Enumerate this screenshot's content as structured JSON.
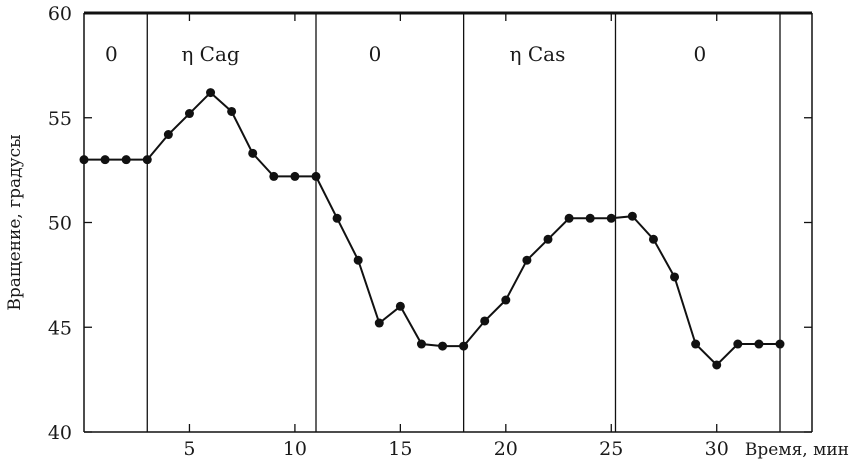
{
  "chart_data": {
    "type": "line",
    "title": "",
    "xlabel": "Время, мин",
    "ylabel": "Вращение, градусы",
    "xlim": [
      0,
      33
    ],
    "ylim": [
      40,
      60
    ],
    "xticks": [
      5,
      10,
      15,
      20,
      25,
      30
    ],
    "xtick_labels": [
      "5",
      "10",
      "15",
      "20",
      "25",
      "30"
    ],
    "yticks": [
      40,
      45,
      50,
      55,
      60
    ],
    "ytick_labels": [
      "40",
      "45",
      "50",
      "55",
      "60"
    ],
    "grid": false,
    "dividers_x": [
      3,
      11,
      18,
      25.2,
      33
    ],
    "regions": [
      {
        "label": "0",
        "x": 1.3
      },
      {
        "label": "η Cag",
        "x": 6.0
      },
      {
        "label": "0",
        "x": 13.8
      },
      {
        "label": "η Cas",
        "x": 21.5
      },
      {
        "label": "0",
        "x": 29.2
      }
    ],
    "series": [
      {
        "x": [
          0,
          1,
          2,
          3,
          4,
          5,
          6,
          7,
          8,
          9,
          10,
          11,
          12,
          13,
          14,
          15,
          16,
          17,
          18,
          19,
          20,
          21,
          22,
          23,
          24,
          25,
          26,
          27,
          28,
          29,
          30,
          31,
          32,
          33
        ],
        "y": [
          53.0,
          53.0,
          53.0,
          53.0,
          54.2,
          55.2,
          56.2,
          55.3,
          53.3,
          52.2,
          52.2,
          52.2,
          50.2,
          48.2,
          45.2,
          46.0,
          44.2,
          44.1,
          44.1,
          45.3,
          46.3,
          48.2,
          49.2,
          50.2,
          50.2,
          50.2,
          50.3,
          49.2,
          47.4,
          44.2,
          43.2,
          44.2,
          44.2,
          44.2
        ]
      }
    ]
  }
}
